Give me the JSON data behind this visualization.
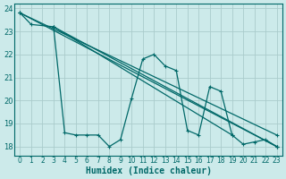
{
  "bg_color": "#cceaea",
  "line_color": "#006868",
  "grid_color": "#aacccc",
  "xlim_min": -0.5,
  "xlim_max": 23.5,
  "ylim_min": 17.6,
  "ylim_max": 24.2,
  "yticks": [
    18,
    19,
    20,
    21,
    22,
    23,
    24
  ],
  "xticks": [
    0,
    1,
    2,
    3,
    4,
    5,
    6,
    7,
    8,
    9,
    10,
    11,
    12,
    13,
    14,
    15,
    16,
    17,
    18,
    19,
    20,
    21,
    22,
    23
  ],
  "xlabel": "Humidex (Indice chaleur)",
  "zigzag": {
    "x": [
      0,
      1,
      3,
      4,
      5,
      6,
      7,
      8,
      9,
      10,
      11,
      12,
      13,
      14,
      15,
      16,
      17,
      18,
      19,
      20,
      21,
      22,
      23
    ],
    "y": [
      23.8,
      23.3,
      23.2,
      18.6,
      18.5,
      18.5,
      18.5,
      18.0,
      18.3,
      20.1,
      21.8,
      22.0,
      21.5,
      21.3,
      18.7,
      18.5,
      20.6,
      20.4,
      18.5,
      18.1,
      18.2,
      18.3,
      18.0
    ]
  },
  "straight_lines": [
    {
      "x1": 0,
      "y1": 23.8,
      "x2": 23,
      "y2": 18.0
    },
    {
      "x1": 0,
      "y1": 23.8,
      "x2": 23,
      "y2": 18.5
    },
    {
      "x1": 3,
      "y1": 23.2,
      "x2": 23,
      "y2": 18.0
    },
    {
      "x1": 3,
      "y1": 23.2,
      "x2": 19,
      "y2": 18.5
    }
  ]
}
